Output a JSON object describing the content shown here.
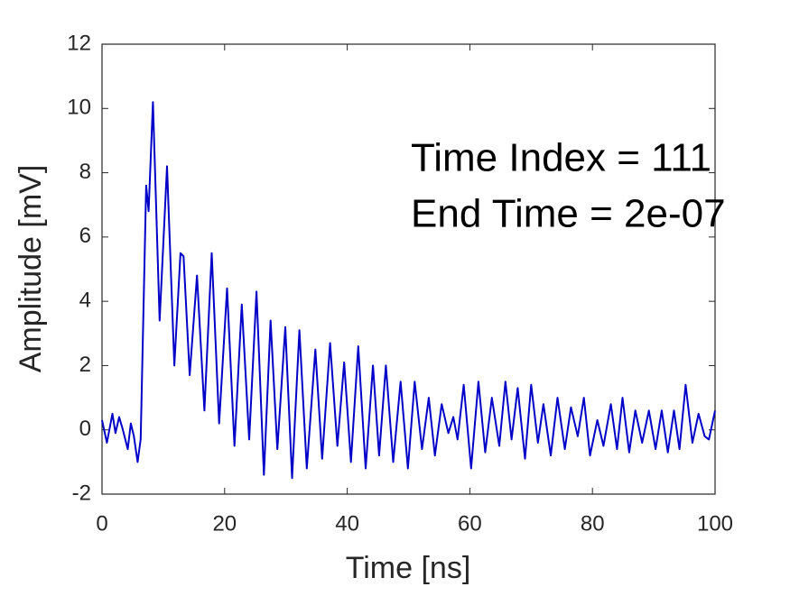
{
  "chart_data": {
    "type": "line",
    "xlabel": "Time [ns]",
    "ylabel": "Amplitude [mV]",
    "annotations": [
      "Time Index = 111",
      "End Time = 2e-07"
    ],
    "x": [
      0,
      0.8,
      1.7,
      2.2,
      2.8,
      3.4,
      4.2,
      4.7,
      5.2,
      5.8,
      6.3,
      7.2,
      7.6,
      8.3,
      9.4,
      10.6,
      11.8,
      12.8,
      13.3,
      14.3,
      15.5,
      16.7,
      17.9,
      19.1,
      20.4,
      21.6,
      22.8,
      24.0,
      25.2,
      26.4,
      27.5,
      28.6,
      29.9,
      31.0,
      32.2,
      33.4,
      34.8,
      35.9,
      37.2,
      38.4,
      39.5,
      40.6,
      41.8,
      43.0,
      44.2,
      45.2,
      46.3,
      47.5,
      48.7,
      49.9,
      51.0,
      52.2,
      53.3,
      54.3,
      55.4,
      56.5,
      57.3,
      58.0,
      59.0,
      60.2,
      61.4,
      62.5,
      63.6,
      64.8,
      65.8,
      66.8,
      67.8,
      69.0,
      70.0,
      71.1,
      72.0,
      73.2,
      74.3,
      75.5,
      76.5,
      77.6,
      78.6,
      79.6,
      80.8,
      81.8,
      83.0,
      84.0,
      84.9,
      86.0,
      87.0,
      88.1,
      89.2,
      90.3,
      91.3,
      92.3,
      93.3,
      94.2,
      95.2,
      96.3,
      97.3,
      98.3,
      99.0,
      100
    ],
    "series": [
      {
        "name": "Amplitude",
        "color": "#0000c8",
        "values": [
          0.3,
          -0.4,
          0.5,
          -0.1,
          0.4,
          0,
          -0.6,
          0.2,
          -0.2,
          -1.0,
          -0.3,
          7.6,
          6.8,
          10.2,
          3.4,
          8.2,
          2.0,
          5.5,
          5.4,
          1.7,
          4.8,
          0.6,
          5.5,
          0.2,
          4.4,
          -0.5,
          3.9,
          -0.3,
          4.3,
          -1.4,
          3.4,
          -0.6,
          3.2,
          -1.5,
          3.1,
          -1.2,
          2.5,
          -0.9,
          2.7,
          -0.5,
          2.1,
          -1.0,
          2.6,
          -1.2,
          2.0,
          -0.8,
          2.0,
          -1.0,
          1.5,
          -1.2,
          1.5,
          -0.6,
          1.0,
          -0.8,
          0.8,
          -0.1,
          0.4,
          -0.3,
          1.4,
          -1.2,
          1.5,
          -0.7,
          1.0,
          -0.5,
          1.5,
          -0.3,
          1.3,
          -0.9,
          1.4,
          -0.4,
          0.8,
          -0.8,
          1.0,
          -0.6,
          0.7,
          -0.2,
          1.0,
          -0.8,
          0.3,
          -0.5,
          0.8,
          -0.6,
          1.0,
          -0.7,
          0.6,
          -0.4,
          0.6,
          -0.6,
          0.6,
          -0.7,
          0.6,
          -0.6,
          1.4,
          -0.4,
          0.5,
          -0.2,
          -0.3,
          0.6
        ]
      }
    ],
    "xlim": [
      0,
      100
    ],
    "xticks": [
      0,
      20,
      40,
      60,
      80,
      100
    ],
    "ylim": [
      -2,
      12
    ],
    "yticks": [
      -2,
      0,
      2,
      4,
      6,
      8,
      10,
      12
    ],
    "grid": false
  }
}
